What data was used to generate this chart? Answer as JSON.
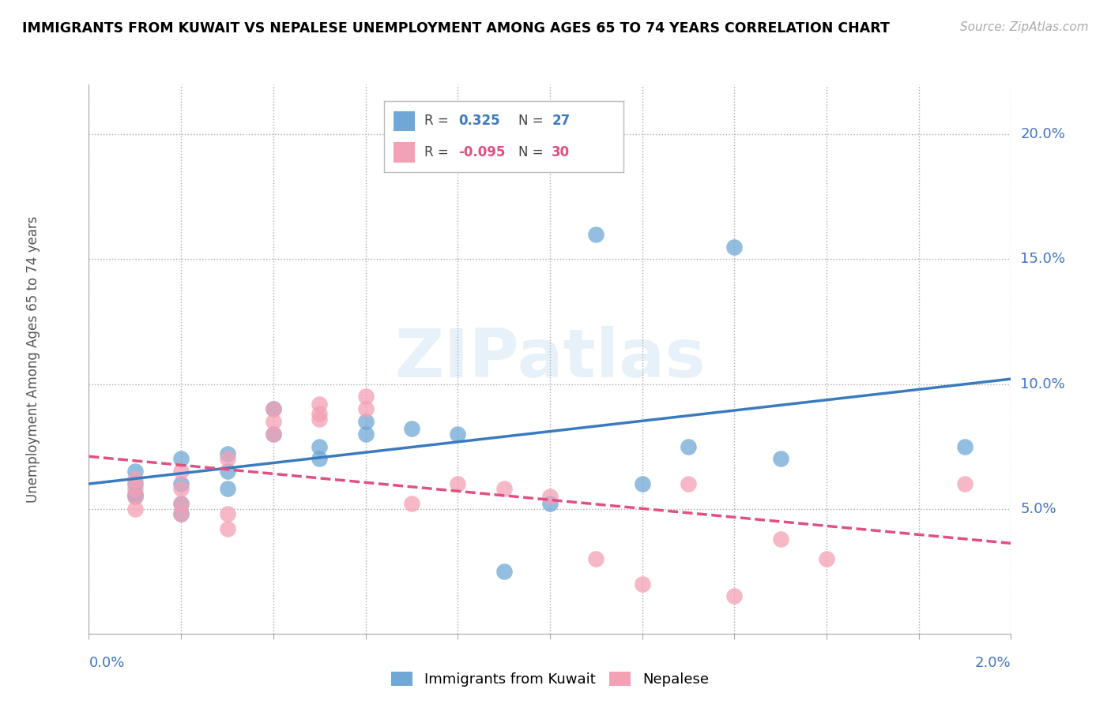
{
  "title": "IMMIGRANTS FROM KUWAIT VS NEPALESE UNEMPLOYMENT AMONG AGES 65 TO 74 YEARS CORRELATION CHART",
  "source": "Source: ZipAtlas.com",
  "ylabel_label": "Unemployment Among Ages 65 to 74 years",
  "legend_blue": "Immigrants from Kuwait",
  "legend_pink": "Nepalese",
  "r_blue": 0.325,
  "n_blue": 27,
  "r_pink": -0.095,
  "n_pink": 30,
  "blue_color": "#6fa8d6",
  "pink_color": "#f4a0b5",
  "trend_blue": "#3a7bbf",
  "trend_pink": "#e05080",
  "blue_scatter": [
    [
      0.001,
      0.056
    ],
    [
      0.001,
      0.065
    ],
    [
      0.001,
      0.06
    ],
    [
      0.001,
      0.055
    ],
    [
      0.002,
      0.07
    ],
    [
      0.002,
      0.06
    ],
    [
      0.002,
      0.052
    ],
    [
      0.002,
      0.048
    ],
    [
      0.003,
      0.065
    ],
    [
      0.003,
      0.072
    ],
    [
      0.003,
      0.058
    ],
    [
      0.004,
      0.09
    ],
    [
      0.004,
      0.08
    ],
    [
      0.005,
      0.075
    ],
    [
      0.005,
      0.07
    ],
    [
      0.006,
      0.08
    ],
    [
      0.006,
      0.085
    ],
    [
      0.007,
      0.082
    ],
    [
      0.008,
      0.08
    ],
    [
      0.009,
      0.025
    ],
    [
      0.01,
      0.052
    ],
    [
      0.011,
      0.16
    ],
    [
      0.012,
      0.06
    ],
    [
      0.013,
      0.075
    ],
    [
      0.014,
      0.155
    ],
    [
      0.015,
      0.07
    ],
    [
      0.019,
      0.075
    ]
  ],
  "pink_scatter": [
    [
      0.001,
      0.058
    ],
    [
      0.001,
      0.062
    ],
    [
      0.001,
      0.055
    ],
    [
      0.001,
      0.05
    ],
    [
      0.002,
      0.065
    ],
    [
      0.002,
      0.058
    ],
    [
      0.002,
      0.052
    ],
    [
      0.002,
      0.048
    ],
    [
      0.003,
      0.07
    ],
    [
      0.003,
      0.048
    ],
    [
      0.003,
      0.042
    ],
    [
      0.004,
      0.09
    ],
    [
      0.004,
      0.085
    ],
    [
      0.004,
      0.08
    ],
    [
      0.005,
      0.092
    ],
    [
      0.005,
      0.086
    ],
    [
      0.005,
      0.088
    ],
    [
      0.006,
      0.095
    ],
    [
      0.006,
      0.09
    ],
    [
      0.007,
      0.052
    ],
    [
      0.008,
      0.06
    ],
    [
      0.009,
      0.058
    ],
    [
      0.01,
      0.055
    ],
    [
      0.011,
      0.03
    ],
    [
      0.012,
      0.02
    ],
    [
      0.013,
      0.06
    ],
    [
      0.014,
      0.015
    ],
    [
      0.015,
      0.038
    ],
    [
      0.016,
      0.03
    ],
    [
      0.019,
      0.06
    ]
  ],
  "xlim": [
    0.0,
    0.02
  ],
  "ylim": [
    0.0,
    0.22
  ]
}
